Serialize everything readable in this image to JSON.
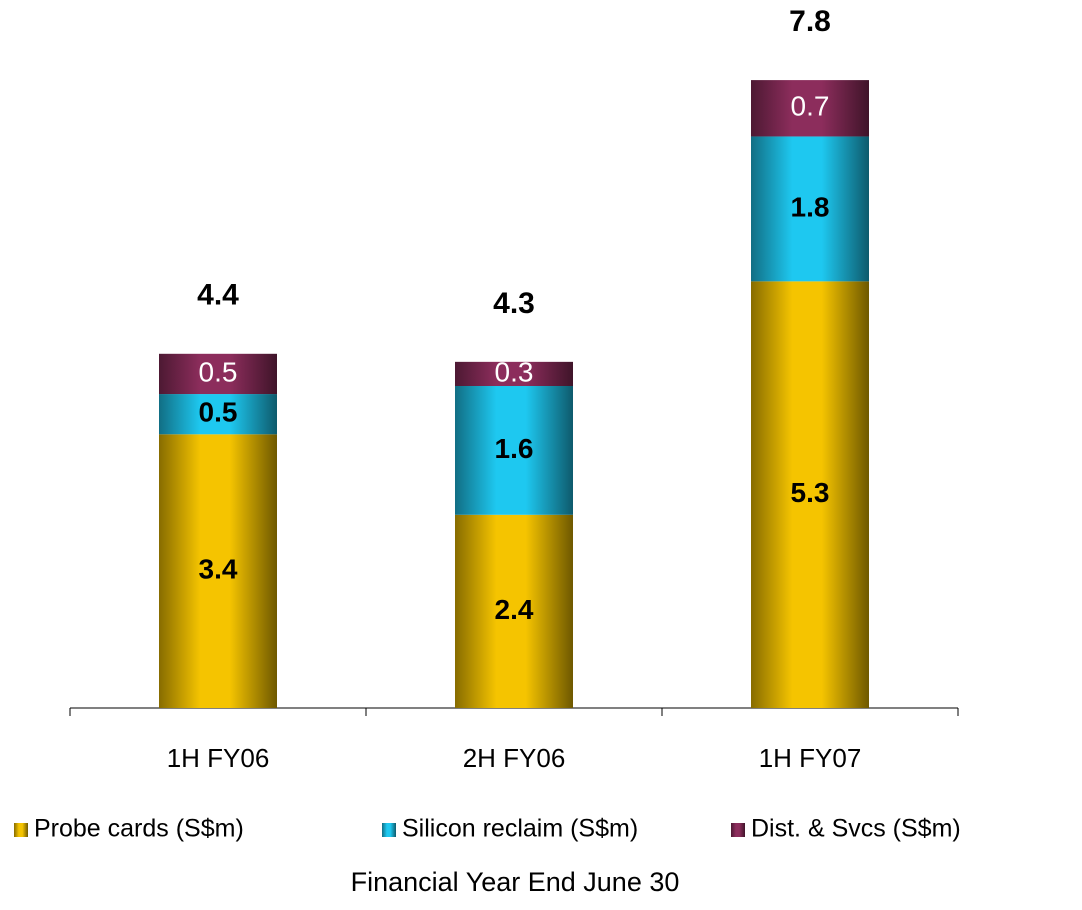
{
  "chart_data": {
    "type": "stacked_bar",
    "categories": [
      "1H FY06",
      "2H FY06",
      "1H FY07"
    ],
    "series": [
      {
        "name": "Probe cards (S$m)",
        "color": "#f5c400",
        "values": [
          3.4,
          2.4,
          5.3
        ]
      },
      {
        "name": "Silicon reclaim (S$m)",
        "color": "#1ec8f0",
        "values": [
          0.5,
          1.6,
          1.8
        ]
      },
      {
        "name": "Dist. & Svcs (S$m)",
        "color": "#8c2d5c",
        "values": [
          0.5,
          0.3,
          0.7
        ]
      }
    ],
    "totals": [
      4.4,
      4.3,
      7.8
    ],
    "xlabel": "Financial Year End June 30"
  }
}
